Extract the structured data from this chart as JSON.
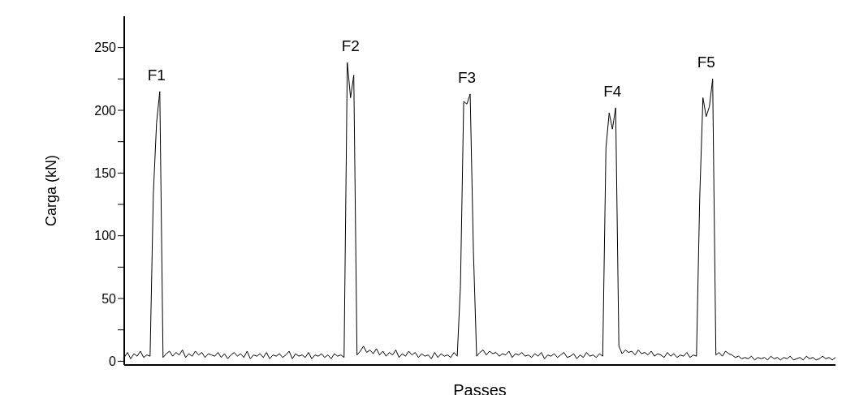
{
  "chart_data": {
    "type": "line",
    "xlabel": "Passes",
    "ylabel": "Carga (kN)",
    "categories": [
      null,
      null,
      null,
      null,
      null,
      null,
      null,
      null,
      null,
      null,
      null,
      null,
      null,
      null,
      null,
      null,
      null,
      null,
      null,
      null,
      null,
      null,
      null,
      null,
      null,
      null,
      null,
      null,
      null,
      null,
      null,
      null,
      null,
      null,
      null,
      null,
      null,
      null,
      null,
      null,
      null,
      null,
      null,
      null,
      null,
      null,
      null,
      null,
      null,
      null,
      null,
      null,
      null,
      null,
      null,
      null,
      null,
      null,
      null,
      null,
      null,
      null,
      null,
      null,
      null,
      null,
      null,
      null,
      null,
      null,
      null,
      null,
      null,
      null,
      null,
      null,
      null,
      null,
      null,
      null,
      null,
      null,
      null,
      null,
      null,
      null,
      null,
      null,
      null,
      null,
      null,
      null,
      null,
      null,
      null,
      null,
      null,
      null,
      null,
      null,
      null,
      null,
      null,
      null,
      null,
      null,
      null,
      null,
      null,
      null,
      null,
      null,
      null,
      null,
      null,
      null,
      null,
      null,
      null,
      null,
      null,
      null,
      null,
      null,
      null,
      null,
      null,
      null,
      null,
      null,
      null,
      null,
      null,
      null,
      null,
      null,
      null,
      null,
      null,
      null,
      null,
      null,
      null,
      null,
      null,
      null,
      null,
      null,
      null,
      null,
      null,
      null,
      null,
      null,
      null,
      null,
      null,
      null,
      null,
      null,
      null,
      null,
      null,
      null,
      null,
      null,
      null,
      null,
      null,
      null,
      null,
      null,
      null,
      null,
      null,
      null,
      null,
      null,
      null,
      null,
      null,
      null,
      null,
      null,
      null,
      null,
      null,
      null,
      null,
      null,
      null,
      null,
      null,
      null,
      null,
      null,
      null,
      null,
      null,
      null,
      null,
      null,
      null,
      null,
      null,
      null,
      null,
      null,
      null,
      null,
      null,
      null,
      null,
      null,
      null,
      null,
      null,
      null,
      null,
      null,
      null
    ],
    "series": [
      {
        "color": "#000000",
        "values": [
          3,
          7,
          2,
          6,
          4,
          8,
          3,
          5,
          4,
          133,
          190,
          215,
          3,
          6,
          8,
          4,
          7,
          5,
          9,
          3,
          6,
          4,
          8,
          5,
          7,
          3,
          6,
          5,
          4,
          7,
          3,
          6,
          2,
          5,
          7,
          4,
          6,
          3,
          8,
          2,
          5,
          4,
          6,
          3,
          7,
          2,
          5,
          4,
          6,
          3,
          5,
          8,
          2,
          6,
          4,
          5,
          3,
          7,
          2,
          5,
          4,
          6,
          3,
          5,
          2,
          6,
          4,
          5,
          3,
          238,
          210,
          228,
          5,
          8,
          12,
          7,
          9,
          6,
          10,
          5,
          8,
          4,
          7,
          5,
          9,
          3,
          6,
          4,
          8,
          5,
          7,
          3,
          6,
          4,
          5,
          2,
          7,
          3,
          6,
          4,
          5,
          3,
          7,
          4,
          60,
          207,
          205,
          213,
          88,
          4,
          7,
          9,
          5,
          8,
          6,
          7,
          4,
          6,
          5,
          8,
          3,
          6,
          5,
          7,
          4,
          5,
          3,
          6,
          4,
          7,
          2,
          5,
          4,
          6,
          3,
          5,
          7,
          3,
          4,
          6,
          2,
          5,
          3,
          7,
          4,
          5,
          3,
          6,
          4,
          170,
          198,
          185,
          202,
          12,
          6,
          9,
          7,
          8,
          5,
          9,
          6,
          7,
          5,
          8,
          4,
          6,
          5,
          3,
          7,
          4,
          6,
          3,
          5,
          4,
          7,
          3,
          5,
          4,
          130,
          210,
          195,
          203,
          225,
          5,
          7,
          4,
          8,
          6,
          5,
          3,
          4,
          2,
          3,
          2,
          4,
          1,
          3,
          2,
          3,
          1,
          4,
          2,
          3,
          1,
          3,
          2,
          4,
          1,
          2,
          3,
          1,
          4,
          2,
          3,
          1,
          2,
          4,
          2,
          3,
          1,
          3
        ]
      }
    ],
    "ylim": [
      -3,
      275
    ],
    "yticks": [
      0,
      {
        "value": 25,
        "label": null
      },
      50,
      {
        "value": 75,
        "label": null
      },
      100,
      {
        "value": 125,
        "label": null
      },
      150,
      {
        "value": 175,
        "label": null
      },
      200,
      {
        "value": 225,
        "label": null
      },
      250
    ],
    "tick_labels": "y",
    "marker": "none",
    "line_style": "solid",
    "annotations": [
      "F1",
      "F2",
      "F3",
      "F4",
      "F5"
    ]
  }
}
